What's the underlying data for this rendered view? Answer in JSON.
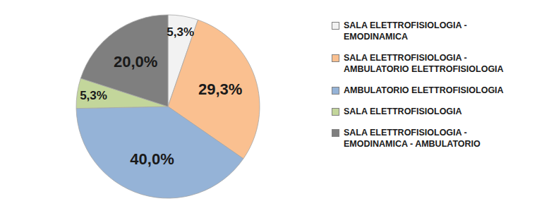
{
  "chart_data": {
    "type": "pie",
    "categories": [
      "SALA ELETTROFISIOLOGIA - EMODINAMICA",
      "SALA ELETTROFISIOLOGIA - AMBULATORIO ELETTROFISIOLOGIA",
      "AMBULATORIO ELETTROFISIOLOGIA",
      "SALA ELETTROFISIOLOGIA",
      "SALA ELETTROFISIOLOGIA - EMODINAMICA - AMBULATORIO"
    ],
    "values": [
      5.3,
      29.3,
      40.0,
      5.3,
      20.0
    ],
    "value_labels": [
      "5,3%",
      "29,3%",
      "40,0%",
      "5,3%",
      "20,0%"
    ],
    "colors": [
      "#f2f2f2",
      "#fac090",
      "#95b3d7",
      "#c3d69b",
      "#7f7f7f"
    ],
    "data_labels": true,
    "legend": "right"
  }
}
